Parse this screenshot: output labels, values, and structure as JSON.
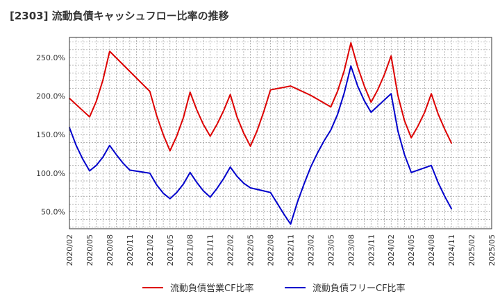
{
  "title": "[2303]  流動負債キャッシュフロー比率の推移",
  "chart_data": {
    "type": "line",
    "title": "[2303]  流動負債キャッシュフロー比率の推移",
    "xlabel": "",
    "ylabel": "",
    "x_ticks": [
      "2020/02",
      "2020/05",
      "2020/08",
      "2020/11",
      "2021/02",
      "2021/05",
      "2021/08",
      "2021/11",
      "2022/02",
      "2022/05",
      "2022/08",
      "2022/11",
      "2023/02",
      "2023/05",
      "2023/08",
      "2023/11",
      "2024/02",
      "2024/05",
      "2024/08",
      "2024/11",
      "2025/02",
      "2025/05"
    ],
    "y_ticks": [
      "50.0%",
      "100.0%",
      "150.0%",
      "200.0%",
      "250.0%"
    ],
    "y_tick_values": [
      50,
      100,
      150,
      200,
      250
    ],
    "ylim": [
      28,
      276
    ],
    "grid": true,
    "legend_position": "bottom",
    "series": [
      {
        "name": "流動負債営業CF比率",
        "color": "#dd0000",
        "points": [
          [
            "2020/02",
            197
          ],
          [
            "2020/04",
            181
          ],
          [
            "2020/05",
            173
          ],
          [
            "2020/06",
            193
          ],
          [
            "2020/07",
            221
          ],
          [
            "2020/08",
            258
          ],
          [
            "2020/11",
            232
          ],
          [
            "2021/02",
            206
          ],
          [
            "2021/03",
            175
          ],
          [
            "2021/04",
            150
          ],
          [
            "2021/05",
            129
          ],
          [
            "2021/06",
            148
          ],
          [
            "2021/07",
            172
          ],
          [
            "2021/08",
            205
          ],
          [
            "2021/09",
            182
          ],
          [
            "2021/10",
            163
          ],
          [
            "2021/11",
            148
          ],
          [
            "2021/12",
            163
          ],
          [
            "2022/01",
            181
          ],
          [
            "2022/02",
            202
          ],
          [
            "2022/03",
            173
          ],
          [
            "2022/04",
            152
          ],
          [
            "2022/05",
            135
          ],
          [
            "2022/06",
            155
          ],
          [
            "2022/07",
            180
          ],
          [
            "2022/08",
            208
          ],
          [
            "2022/11",
            213
          ],
          [
            "2023/02",
            201
          ],
          [
            "2023/05",
            186
          ],
          [
            "2023/06",
            206
          ],
          [
            "2023/07",
            233
          ],
          [
            "2023/08",
            269
          ],
          [
            "2023/09",
            238
          ],
          [
            "2023/10",
            213
          ],
          [
            "2023/11",
            192
          ],
          [
            "2023/12",
            208
          ],
          [
            "2024/01",
            228
          ],
          [
            "2024/02",
            252
          ],
          [
            "2024/03",
            201
          ],
          [
            "2024/04",
            168
          ],
          [
            "2024/05",
            146
          ],
          [
            "2024/06",
            161
          ],
          [
            "2024/07",
            179
          ],
          [
            "2024/08",
            203
          ],
          [
            "2024/09",
            177
          ],
          [
            "2024/10",
            157
          ],
          [
            "2024/11",
            139
          ]
        ]
      },
      {
        "name": "流動負債フリーCF比率",
        "color": "#0000cc",
        "points": [
          [
            "2020/02",
            159
          ],
          [
            "2020/03",
            136
          ],
          [
            "2020/04",
            118
          ],
          [
            "2020/05",
            103
          ],
          [
            "2020/06",
            110
          ],
          [
            "2020/07",
            121
          ],
          [
            "2020/08",
            136
          ],
          [
            "2020/09",
            124
          ],
          [
            "2020/10",
            113
          ],
          [
            "2020/11",
            104
          ],
          [
            "2021/02",
            100
          ],
          [
            "2021/03",
            85
          ],
          [
            "2021/04",
            74
          ],
          [
            "2021/05",
            67
          ],
          [
            "2021/06",
            75
          ],
          [
            "2021/07",
            86
          ],
          [
            "2021/08",
            101
          ],
          [
            "2021/09",
            88
          ],
          [
            "2021/10",
            77
          ],
          [
            "2021/11",
            69
          ],
          [
            "2021/12",
            80
          ],
          [
            "2022/01",
            93
          ],
          [
            "2022/02",
            108
          ],
          [
            "2022/03",
            96
          ],
          [
            "2022/04",
            87
          ],
          [
            "2022/05",
            81
          ],
          [
            "2022/08",
            75
          ],
          [
            "2022/09",
            61
          ],
          [
            "2022/10",
            47
          ],
          [
            "2022/11",
            34
          ],
          [
            "2022/12",
            62
          ],
          [
            "2023/01",
            86
          ],
          [
            "2023/02",
            108
          ],
          [
            "2023/03",
            126
          ],
          [
            "2023/04",
            142
          ],
          [
            "2023/05",
            156
          ],
          [
            "2023/06",
            176
          ],
          [
            "2023/07",
            204
          ],
          [
            "2023/08",
            239
          ],
          [
            "2023/09",
            213
          ],
          [
            "2023/10",
            194
          ],
          [
            "2023/11",
            179
          ],
          [
            "2024/02",
            203
          ],
          [
            "2024/03",
            155
          ],
          [
            "2024/04",
            124
          ],
          [
            "2024/05",
            101
          ],
          [
            "2024/08",
            110
          ],
          [
            "2024/09",
            88
          ],
          [
            "2024/10",
            70
          ],
          [
            "2024/11",
            54
          ]
        ]
      }
    ]
  }
}
